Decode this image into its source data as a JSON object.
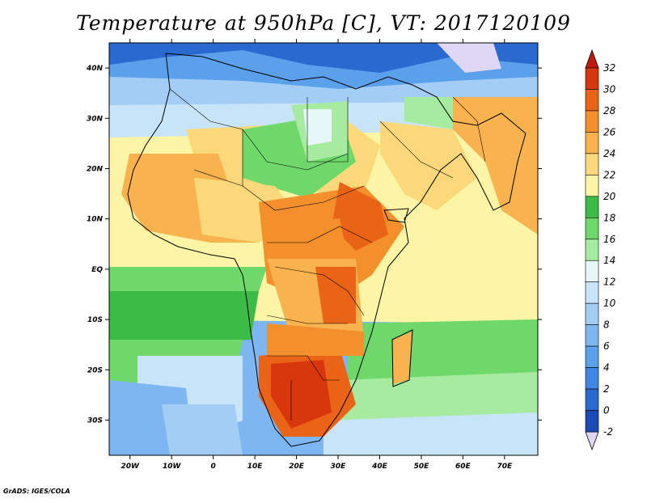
{
  "title": "Temperature at 950hPa [C], VT: 2017120109",
  "credit": "GrADS: IGES/COLA",
  "map": {
    "lon_range": [
      -25,
      78
    ],
    "lat_range": [
      -37,
      45
    ],
    "x_ticks": [
      {
        "lon": -20,
        "label": "20W"
      },
      {
        "lon": -10,
        "label": "10W"
      },
      {
        "lon": 0,
        "label": "0"
      },
      {
        "lon": 10,
        "label": "10E"
      },
      {
        "lon": 20,
        "label": "20E"
      },
      {
        "lon": 30,
        "label": "30E"
      },
      {
        "lon": 40,
        "label": "40E"
      },
      {
        "lon": 50,
        "label": "50E"
      },
      {
        "lon": 60,
        "label": "60E"
      },
      {
        "lon": 70,
        "label": "70E"
      }
    ],
    "y_ticks": [
      {
        "lat": 40,
        "label": "40N"
      },
      {
        "lat": 30,
        "label": "30N"
      },
      {
        "lat": 20,
        "label": "20N"
      },
      {
        "lat": 10,
        "label": "10N"
      },
      {
        "lat": 0,
        "label": "EQ"
      },
      {
        "lat": -10,
        "label": "10S"
      },
      {
        "lat": -20,
        "label": "20S"
      },
      {
        "lat": -30,
        "label": "30S"
      }
    ]
  },
  "colorbar": {
    "levels": [
      {
        "value": "-2",
        "color": "#0b1d6e"
      },
      {
        "value": "0",
        "color": "#1a4bb5"
      },
      {
        "value": "2",
        "color": "#2a6ad0"
      },
      {
        "value": "4",
        "color": "#3f86e3"
      },
      {
        "value": "6",
        "color": "#5aa0ea"
      },
      {
        "value": "8",
        "color": "#7db6f0"
      },
      {
        "value": "10",
        "color": "#a3cdf5"
      },
      {
        "value": "12",
        "color": "#c8e4f9"
      },
      {
        "value": "14",
        "color": "#e6f7f8"
      },
      {
        "value": "16",
        "color": "#a6eba0"
      },
      {
        "value": "18",
        "color": "#6ed86a"
      },
      {
        "value": "20",
        "color": "#3cbc46"
      },
      {
        "value": "22",
        "color": "#fdf5a6"
      },
      {
        "value": "24",
        "color": "#fbd97a"
      },
      {
        "value": "26",
        "color": "#f8b34f"
      },
      {
        "value": "28",
        "color": "#f3902b"
      },
      {
        "value": "30",
        "color": "#ea6417"
      },
      {
        "value": "32",
        "color": "#d8360d"
      }
    ],
    "top_color": "#c01a0a",
    "bottom_color": "#e0d6f5"
  }
}
